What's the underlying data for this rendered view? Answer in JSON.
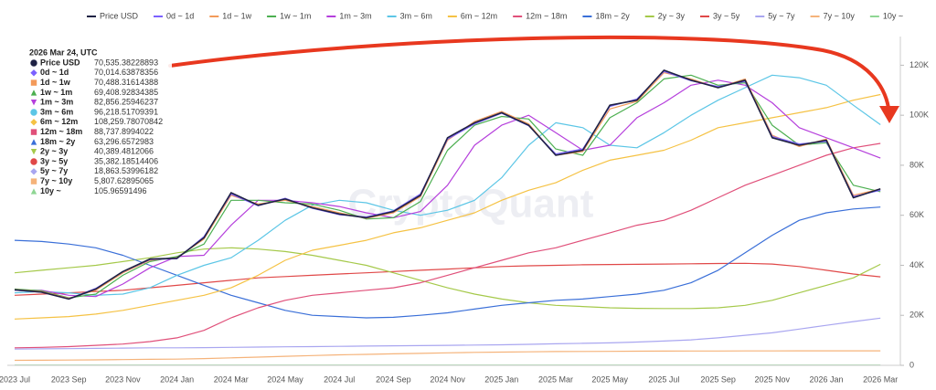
{
  "chart_data": {
    "type": "line",
    "watermark": "CryptoQuant",
    "categories": [
      "2023 Jul",
      null,
      "2023 Sep",
      null,
      "2023 Nov",
      null,
      "2024 Jan",
      null,
      "2024 Mar",
      null,
      "2024 May",
      null,
      "2024 Jul",
      null,
      "2024 Sep",
      null,
      "2024 Nov",
      null,
      "2025 Jan",
      null,
      "2025 Mar",
      null,
      "2025 May",
      null,
      "2025 Jul",
      null,
      "2025 Sep",
      null,
      "2025 Nov",
      null,
      "2026 Jan",
      null,
      "2026 Mar"
    ],
    "ylim": [
      0,
      130000
    ],
    "yticks": [
      0,
      {
        "value": 20000,
        "label": "20K"
      },
      {
        "value": 40000,
        "label": "40K"
      },
      {
        "value": 60000,
        "label": "60K"
      },
      {
        "value": 80000,
        "label": "80K"
      },
      {
        "value": 100000,
        "label": "100K"
      },
      {
        "value": 120000,
        "label": "120K"
      }
    ],
    "series": [
      {
        "name": "Price USD",
        "color": "#1f2244",
        "values": [
          30200,
          29300,
          26500,
          30500,
          37500,
          42500,
          42800,
          51000,
          69000,
          64000,
          66500,
          63000,
          60500,
          59000,
          61500,
          68000,
          91000,
          97000,
          101000,
          96000,
          84000,
          86000,
          104000,
          106000,
          118000,
          114000,
          111000,
          114000,
          91000,
          88000,
          90000,
          67000,
          70535.38228893
        ]
      },
      {
        "name": "0d ~ 1d",
        "color": "#7b61ff",
        "values": [
          30100,
          29200,
          26600,
          30800,
          37400,
          42300,
          42600,
          51500,
          68500,
          63800,
          66800,
          62800,
          60200,
          59300,
          61800,
          68500,
          90500,
          96500,
          100800,
          95800,
          84500,
          86500,
          103500,
          106500,
          117500,
          113800,
          111500,
          113500,
          91500,
          88500,
          89500,
          67500,
          70014.63878356
        ]
      },
      {
        "name": "1d ~ 1w",
        "color": "#f39a5a",
        "values": [
          30300,
          29500,
          26800,
          30000,
          37000,
          42000,
          43000,
          50500,
          68000,
          64500,
          66000,
          63500,
          61000,
          58800,
          61000,
          67500,
          90000,
          97500,
          101500,
          96500,
          84000,
          85500,
          102500,
          105500,
          117000,
          114500,
          111000,
          114500,
          92000,
          87500,
          90500,
          68000,
          70488.31614388
        ]
      },
      {
        "name": "1w ~ 1m",
        "color": "#4caf50",
        "values": [
          30500,
          29800,
          27000,
          28500,
          36000,
          41500,
          43500,
          48500,
          66000,
          66000,
          65000,
          64500,
          62000,
          58500,
          59000,
          65500,
          86000,
          96000,
          99500,
          98500,
          86500,
          84000,
          99000,
          105000,
          114500,
          116000,
          112000,
          113000,
          96000,
          88000,
          89000,
          72000,
          69408.92834385
        ]
      },
      {
        "name": "1m ~ 3m",
        "color": "#b53fdc",
        "values": [
          30000,
          30000,
          28000,
          27500,
          32500,
          39000,
          43500,
          44000,
          56000,
          66000,
          66000,
          65000,
          63500,
          61000,
          59000,
          61500,
          72000,
          88000,
          96000,
          100000,
          93000,
          86000,
          88000,
          99000,
          105000,
          112000,
          114000,
          112000,
          105000,
          95000,
          91000,
          87000,
          82856.25946237
        ]
      },
      {
        "name": "3m ~ 6m",
        "color": "#5cc6e6",
        "values": [
          29000,
          29500,
          29000,
          28000,
          28500,
          31000,
          36000,
          40000,
          43000,
          50000,
          58000,
          64000,
          66000,
          65000,
          62000,
          60000,
          62000,
          66000,
          75000,
          88000,
          97000,
          95000,
          88000,
          87000,
          93000,
          100000,
          106000,
          111000,
          116000,
          115000,
          112000,
          104000,
          96218.51709391
        ]
      },
      {
        "name": "6m ~ 12m",
        "color": "#f5c244",
        "values": [
          18500,
          19000,
          19500,
          20500,
          22000,
          24000,
          26000,
          28000,
          31000,
          36000,
          42000,
          46000,
          48000,
          50000,
          53000,
          55000,
          58000,
          61000,
          66000,
          70000,
          73000,
          78000,
          82000,
          84000,
          86000,
          90000,
          95000,
          97000,
          99000,
          101000,
          103000,
          106000,
          108259.78070842
        ]
      },
      {
        "name": "12m ~ 18m",
        "color": "#e0507a",
        "values": [
          7000,
          7200,
          7500,
          8000,
          8500,
          9500,
          11000,
          14000,
          19000,
          23000,
          26000,
          28000,
          29000,
          30000,
          31000,
          33000,
          36000,
          39000,
          42000,
          45000,
          47000,
          50000,
          53000,
          56000,
          58000,
          62000,
          67000,
          72000,
          76000,
          80000,
          84000,
          87000,
          88737.8994022
        ]
      },
      {
        "name": "18m ~ 2y",
        "color": "#3a6fd8",
        "values": [
          50000,
          49500,
          48500,
          47000,
          44000,
          40000,
          36000,
          32000,
          28000,
          25000,
          22000,
          20000,
          19500,
          19000,
          19200,
          20000,
          21000,
          22500,
          24000,
          25000,
          26000,
          26500,
          27500,
          28500,
          30000,
          33000,
          38000,
          45000,
          52000,
          58000,
          61000,
          62500,
          63296.6572983
        ]
      },
      {
        "name": "2y ~ 3y",
        "color": "#a5c94a",
        "values": [
          37000,
          38000,
          39000,
          40000,
          41500,
          43000,
          45000,
          46500,
          47000,
          46500,
          45500,
          44000,
          42000,
          40000,
          37000,
          34000,
          31000,
          28500,
          26500,
          25000,
          24000,
          23500,
          23000,
          22800,
          22700,
          22700,
          23000,
          24000,
          26000,
          29000,
          32000,
          35000,
          40389.4812066
        ]
      },
      {
        "name": "3y ~ 5y",
        "color": "#e04848",
        "values": [
          28000,
          28500,
          29000,
          29500,
          30000,
          31000,
          32000,
          33000,
          34000,
          35000,
          35500,
          36000,
          36500,
          37000,
          37500,
          38000,
          38500,
          39000,
          39500,
          39800,
          40000,
          40200,
          40300,
          40400,
          40500,
          40600,
          40700,
          40800,
          40500,
          39500,
          38000,
          36500,
          35382.18514406
        ]
      },
      {
        "name": "5y ~ 7y",
        "color": "#a9a6f0",
        "values": [
          6500,
          6600,
          6700,
          6800,
          6900,
          7000,
          7000,
          7100,
          7200,
          7300,
          7400,
          7500,
          7600,
          7700,
          7800,
          7900,
          8000,
          8100,
          8200,
          8400,
          8600,
          8800,
          9000,
          9300,
          9700,
          10200,
          11000,
          12000,
          13000,
          14500,
          16000,
          17500,
          18863.53996182
        ]
      },
      {
        "name": "7y ~ 10y",
        "color": "#f5b37a",
        "values": [
          2000,
          2050,
          2100,
          2200,
          2300,
          2400,
          2500,
          2700,
          3000,
          3300,
          3600,
          3900,
          4200,
          4400,
          4600,
          4800,
          5000,
          5200,
          5300,
          5400,
          5500,
          5550,
          5600,
          5650,
          5700,
          5720,
          5740,
          5760,
          5780,
          5790,
          5800,
          5805,
          5807.62895065
        ]
      },
      {
        "name": "10y ~",
        "color": "#8fd694",
        "values": [
          95,
          96,
          97,
          98,
          99,
          100,
          100,
          101,
          101,
          102,
          102,
          102,
          103,
          103,
          103,
          103,
          104,
          104,
          104,
          104,
          105,
          105,
          105,
          105,
          105,
          105,
          105.5,
          105.5,
          105.8,
          105.9,
          105.95,
          105.96,
          105.96591496
        ]
      }
    ],
    "tooltip": {
      "title": "2026 Mar 24, UTC",
      "values": [
        "70,535.38228893",
        "70,014.63878356",
        "70,488.31614388",
        "69,408.92834385",
        "82,856.25946237",
        "96,218.51709391",
        "108,259.78070842",
        "88,737.8994022",
        "63,296.6572983",
        "40,389.4812066",
        "35,382.18514406",
        "18,863.53996182",
        "5,807.62895065",
        "105.96591496"
      ]
    }
  }
}
